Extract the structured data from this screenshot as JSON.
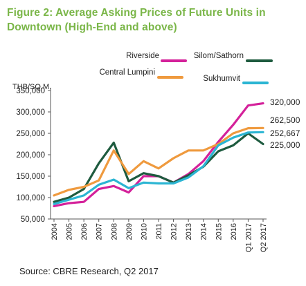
{
  "chart_data": {
    "type": "line",
    "title": "Figure 2: Average Asking Prices of Future Units in Downtown (High-End and above)",
    "ylabel": "THB/SQ.M.",
    "ylim": [
      50000,
      350000
    ],
    "yticks": [
      "350,000",
      "300,000",
      "250,000",
      "200,000",
      "150,000",
      "100,000",
      "50,000"
    ],
    "x": [
      "2004",
      "2005",
      "2006",
      "2007",
      "2008",
      "2009",
      "2010",
      "2011",
      "2012",
      "2013",
      "2014",
      "2015",
      "2016",
      "Q1 2017",
      "Q2 2017"
    ],
    "series": [
      {
        "name": "Riverside",
        "color": "#d4219a",
        "values": [
          80000,
          87000,
          90000,
          120000,
          127000,
          112000,
          150000,
          150000,
          135000,
          155000,
          185000,
          230000,
          270000,
          315000,
          320000
        ]
      },
      {
        "name": "Silom/Sathorn",
        "color": "#1e5b3f",
        "values": [
          90000,
          100000,
          120000,
          180000,
          228000,
          138000,
          157000,
          150000,
          135000,
          152000,
          172000,
          208000,
          222000,
          250000,
          225000
        ]
      },
      {
        "name": "Central Lumpini",
        "color": "#ef9a3e",
        "values": [
          105000,
          118000,
          125000,
          140000,
          210000,
          155000,
          185000,
          168000,
          192000,
          210000,
          210000,
          225000,
          250000,
          262000,
          262500
        ]
      },
      {
        "name": "Sukhumvit",
        "color": "#2bb5d3",
        "values": [
          85000,
          95000,
          105000,
          130000,
          142000,
          122000,
          135000,
          133000,
          133000,
          147000,
          173000,
          222000,
          240000,
          252000,
          252667
        ]
      }
    ],
    "end_labels": [
      "320,000",
      "262,500",
      "252,667",
      "225,000"
    ],
    "grid": false,
    "legend": "top"
  },
  "source": "Source: CBRE Research, Q2 2017"
}
